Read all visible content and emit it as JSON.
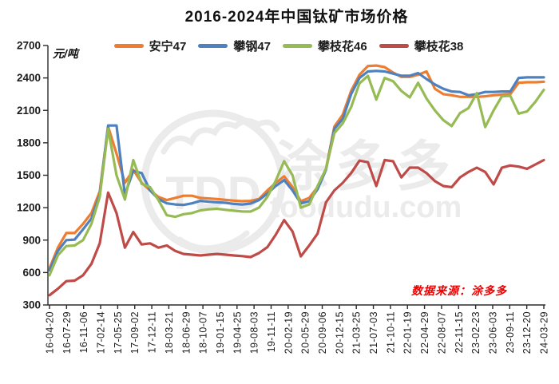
{
  "chart_data": {
    "type": "line",
    "title": "2016-2024年中国钛矿市场价格",
    "unit_label": "元/吨",
    "xlabel": "",
    "ylabel": "元/吨",
    "grid": false,
    "legend_position": "top",
    "y_axis": {
      "min": 300,
      "max": 2700,
      "step": 300
    },
    "x_labels": [
      "16-04-20",
      "16-07-29",
      "16-11-06",
      "17-02-14",
      "17-05-25",
      "17-09-02",
      "17-12-11",
      "18-03-21",
      "18-06-29",
      "18-10-07",
      "19-01-15",
      "19-04-25",
      "19-08-03",
      "19-11-11",
      "20-02-19",
      "20-05-29",
      "20-09-06",
      "20-12-15",
      "21-03-25",
      "21-07-03",
      "21-10-11",
      "22-01-19",
      "22-04-29",
      "22-08-07",
      "22-11-15",
      "23-02-23",
      "23-06-03",
      "23-09-11",
      "23-12-20",
      "24-03-29"
    ],
    "series": [
      {
        "name": "安宁47",
        "color": "#EC7D31",
        "values": [
          640,
          830,
          965,
          965,
          1050,
          1150,
          1350,
          1950,
          1700,
          1430,
          1550,
          1430,
          1360,
          1300,
          1270,
          1290,
          1310,
          1310,
          1290,
          1285,
          1280,
          1272,
          1265,
          1260,
          1263,
          1280,
          1360,
          1430,
          1490,
          1390,
          1260,
          1290,
          1390,
          1560,
          1950,
          2060,
          2280,
          2430,
          2510,
          2515,
          2500,
          2450,
          2410,
          2410,
          2430,
          2460,
          2300,
          2250,
          2240,
          2225,
          2225,
          2225,
          2230,
          2240,
          2245,
          2250,
          2355,
          2360,
          2360,
          2365
        ]
      },
      {
        "name": "攀钢47",
        "color": "#4E81BD",
        "values": [
          620,
          800,
          900,
          905,
          1000,
          1100,
          1320,
          1960,
          1960,
          1320,
          1540,
          1520,
          1360,
          1280,
          1240,
          1230,
          1225,
          1240,
          1263,
          1255,
          1250,
          1245,
          1235,
          1230,
          1238,
          1270,
          1330,
          1400,
          1455,
          1360,
          1240,
          1260,
          1370,
          1550,
          1930,
          2020,
          2250,
          2400,
          2460,
          2465,
          2460,
          2440,
          2420,
          2420,
          2445,
          2390,
          2340,
          2300,
          2275,
          2270,
          2240,
          2250,
          2270,
          2270,
          2275,
          2275,
          2400,
          2405,
          2405,
          2405
        ]
      },
      {
        "name": "攀枝花46",
        "color": "#96BB54",
        "values": [
          575,
          760,
          845,
          850,
          900,
          1050,
          1300,
          1930,
          1500,
          1275,
          1640,
          1420,
          1390,
          1270,
          1130,
          1115,
          1140,
          1150,
          1175,
          1185,
          1190,
          1180,
          1172,
          1165,
          1164,
          1200,
          1300,
          1450,
          1630,
          1500,
          1200,
          1230,
          1400,
          1560,
          1890,
          1980,
          2130,
          2350,
          2420,
          2200,
          2400,
          2370,
          2280,
          2220,
          2355,
          2210,
          2100,
          2010,
          1955,
          2075,
          2120,
          2260,
          1945,
          2100,
          2230,
          2235,
          2070,
          2090,
          2180,
          2290
        ]
      },
      {
        "name": "攀枝花38",
        "color": "#BE4B48",
        "values": [
          390,
          450,
          520,
          525,
          575,
          680,
          870,
          1340,
          1150,
          830,
          975,
          860,
          870,
          830,
          850,
          800,
          772,
          765,
          758,
          765,
          772,
          765,
          758,
          752,
          743,
          780,
          835,
          950,
          1085,
          980,
          750,
          850,
          960,
          1250,
          1360,
          1430,
          1520,
          1635,
          1620,
          1400,
          1640,
          1630,
          1480,
          1570,
          1570,
          1520,
          1445,
          1400,
          1390,
          1480,
          1530,
          1570,
          1530,
          1415,
          1570,
          1590,
          1580,
          1560,
          1600,
          1640
        ]
      }
    ],
    "annotations": {
      "source_note": "数据来源：涂多多",
      "source_color": "#EE0000",
      "watermark_abbr": "TDD",
      "watermark_brand": "涂多多",
      "watermark_domain": "toodudu.com"
    },
    "style": {
      "axis_color": "#2b2b2b",
      "tick_label_color": "#1c1c1c",
      "watermark_color": "#ebebeb",
      "line_width": 3.2
    }
  }
}
